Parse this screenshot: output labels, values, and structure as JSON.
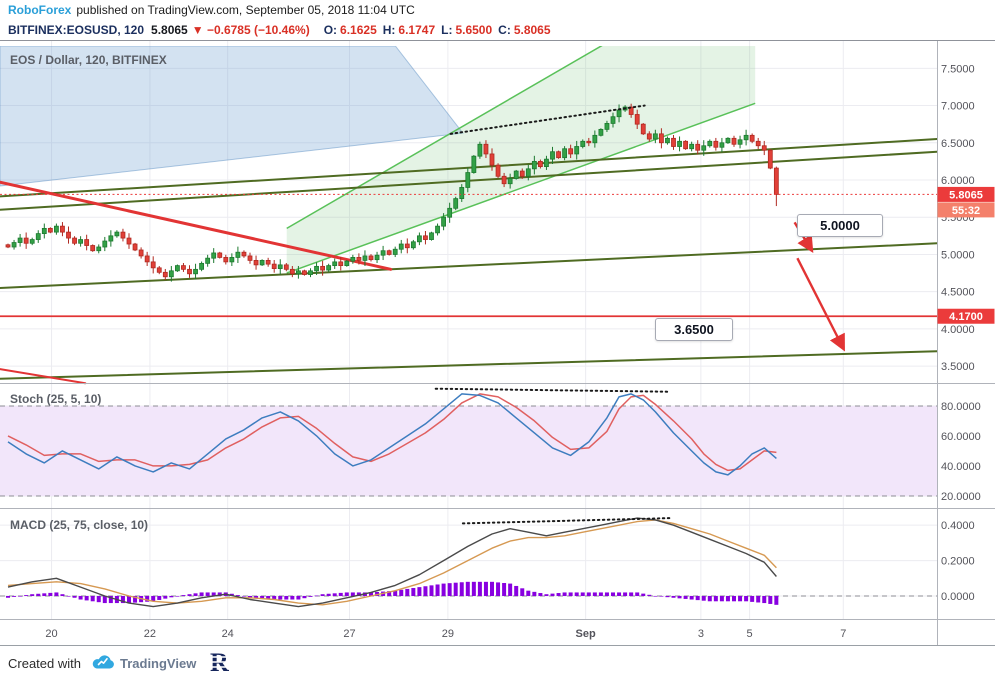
{
  "header": {
    "source": "RoboForex",
    "published": "published on TradingView.com, September 05, 2018 11:04 UTC",
    "symbol": "BITFINEX:EOSUSD, 120",
    "last": "5.8065",
    "change": "▼ −0.6785 (−10.46%)",
    "ohlc": [
      {
        "label": "O:",
        "value": "6.1625"
      },
      {
        "label": "H:",
        "value": "6.1747"
      },
      {
        "label": "L:",
        "value": "5.6500"
      },
      {
        "label": "C:",
        "value": "5.8065"
      }
    ]
  },
  "footer": {
    "created_with": "Created with",
    "tradingview": "TradingView"
  },
  "colors": {
    "up": "#33a046",
    "up_border": "#1d7a30",
    "down": "#e14038",
    "down_border": "#b02a22",
    "channel_fill": "rgba(106,190,112,0.18)",
    "channel_line": "#59c159",
    "trend_green": "#4f6b22",
    "red_line": "#e23434",
    "wedge_fill": "rgba(96,150,205,0.28)",
    "wedge_line": "rgba(80,135,190,0.45)",
    "grid": "#ececf1",
    "separator": "#b0b3ba",
    "axis_text": "#53535a",
    "stoch_k": "#3d7dbf",
    "stoch_d": "#e06060",
    "band_fill": "#f2e6fa",
    "band_border": "#8c8c94",
    "macd_line": "#4a4a4a",
    "macd_signal": "#d69952",
    "hist": "#8800e0",
    "dotted": "#1a1a1a",
    "badge_red": "#eb3b3b",
    "badge_countdown": "#f4806b",
    "link_blue": "#2a9fd8",
    "navy": "#1b2f5e",
    "value_red": "#d93025"
  },
  "chart_data": {
    "type": "candlestick",
    "title": "EOS / Dollar, 120, BITFINEX",
    "ylim": [
      3.3,
      7.8
    ],
    "stoch_ylim": [
      13.3,
      93.3
    ],
    "macd_ylim": [
      -0.13,
      0.48
    ],
    "price_ticks": [
      "7.5000",
      "7.0000",
      "6.5000",
      "6.0000",
      "5.5000",
      "5.0000",
      "4.5000",
      "4.0000",
      "3.5000"
    ],
    "x_ticks": [
      {
        "label": "20",
        "f": 0.055
      },
      {
        "label": "22",
        "f": 0.16
      },
      {
        "label": "24",
        "f": 0.243
      },
      {
        "label": "27",
        "f": 0.373
      },
      {
        "label": "29",
        "f": 0.478
      },
      {
        "label": "Sep",
        "f": 0.625,
        "bold": true
      },
      {
        "label": "3",
        "f": 0.748
      },
      {
        "label": "5",
        "f": 0.8
      },
      {
        "label": "7",
        "f": 0.9
      }
    ],
    "candles_close": [
      5.1,
      5.16,
      5.22,
      5.15,
      5.2,
      5.28,
      5.35,
      5.3,
      5.38,
      5.3,
      5.22,
      5.15,
      5.2,
      5.12,
      5.05,
      5.1,
      5.18,
      5.25,
      5.3,
      5.22,
      5.14,
      5.06,
      4.98,
      4.9,
      4.82,
      4.76,
      4.7,
      4.78,
      4.85,
      4.8,
      4.74,
      4.8,
      4.88,
      4.95,
      5.02,
      4.96,
      4.9,
      4.96,
      5.03,
      4.98,
      4.92,
      4.86,
      4.92,
      4.87,
      4.81,
      4.86,
      4.8,
      4.74,
      4.78,
      4.73,
      4.78,
      4.84,
      4.79,
      4.85,
      4.9,
      4.85,
      4.91,
      4.96,
      4.92,
      4.98,
      4.93,
      4.99,
      5.05,
      5.0,
      5.07,
      5.14,
      5.09,
      5.17,
      5.25,
      5.2,
      5.29,
      5.38,
      5.5,
      5.62,
      5.75,
      5.9,
      6.1,
      6.32,
      6.48,
      6.35,
      6.2,
      6.05,
      5.95,
      6.02,
      6.12,
      6.05,
      6.15,
      6.25,
      6.18,
      6.28,
      6.38,
      6.3,
      6.42,
      6.35,
      6.45,
      6.52,
      6.5,
      6.6,
      6.68,
      6.76,
      6.85,
      6.94,
      6.98,
      6.88,
      6.75,
      6.62,
      6.55,
      6.62,
      6.5,
      6.56,
      6.45,
      6.52,
      6.42,
      6.48,
      6.4,
      6.46,
      6.52,
      6.44,
      6.5,
      6.56,
      6.48,
      6.54,
      6.6,
      6.52,
      6.46,
      6.4,
      6.16,
      5.8065
    ],
    "last_candle_low": 5.65,
    "current_price_value": 5.8065,
    "current_price_label": "5.8065",
    "countdown": "55:32",
    "level_line": {
      "label": "4.1700",
      "price": 4.17
    },
    "targets": [
      {
        "label": "5.0000",
        "price": 5.0
      },
      {
        "label": "3.6500",
        "price": 3.65
      }
    ],
    "trendlines": [
      {
        "x1": 0,
        "p1": 5.78,
        "x2": 1,
        "p2": 6.55,
        "c": "trend_green",
        "w": 2
      },
      {
        "x1": 0,
        "p1": 5.6,
        "x2": 1,
        "p2": 6.38,
        "c": "trend_green",
        "w": 2
      },
      {
        "x1": 0,
        "p1": 4.55,
        "x2": 1,
        "p2": 5.15,
        "c": "trend_green",
        "w": 2
      },
      {
        "x1": 0,
        "p1": 3.33,
        "x2": 1,
        "p2": 3.7,
        "c": "trend_green",
        "w": 2
      },
      {
        "x1": 0,
        "p1": 5.97,
        "x2": 0.417,
        "p2": 4.8,
        "c": "red_line",
        "w": 3
      },
      {
        "x1": 0,
        "p1": 3.46,
        "x2": 0.091,
        "p2": 3.27,
        "c": "red_line",
        "w": 2
      }
    ],
    "channel": {
      "x1": 0.306,
      "x2": 0.806,
      "lower_p1": 4.75,
      "lower_p2": 7.03,
      "upper_p1": 5.35,
      "upper_p2": 9.0
    },
    "wedge": {
      "points": [
        [
          0,
          7.8
        ],
        [
          0.422,
          7.8
        ],
        [
          0.494,
          6.63
        ],
        [
          0,
          5.92
        ]
      ]
    },
    "divergence_lines": [
      {
        "panel": "main",
        "x1": 0.481,
        "v1": 6.62,
        "x2": 0.688,
        "v2": 7.0
      },
      {
        "panel": "stoch",
        "x1": 0.465,
        "v1": 91.5,
        "x2": 0.712,
        "v2": 89.5
      },
      {
        "panel": "macd",
        "x1": 0.494,
        "v1": 0.41,
        "x2": 0.717,
        "v2": 0.44
      }
    ],
    "arrows": [
      {
        "x1": 0.848,
        "p1": 5.43,
        "x2": 0.866,
        "p2": 5.06
      },
      {
        "x1": 0.851,
        "p1": 4.95,
        "x2": 0.9,
        "p2": 3.74
      }
    ],
    "stoch": {
      "label": "Stoch (25, 5, 10)",
      "ticks": [
        "80.0000",
        "60.0000",
        "40.0000",
        "20.0000"
      ],
      "band": [
        20,
        80
      ],
      "k_points": [
        [
          0,
          56
        ],
        [
          3,
          48
        ],
        [
          6,
          42
        ],
        [
          9,
          50
        ],
        [
          12,
          44
        ],
        [
          15,
          38
        ],
        [
          18,
          46
        ],
        [
          21,
          40
        ],
        [
          24,
          36
        ],
        [
          27,
          42
        ],
        [
          30,
          38
        ],
        [
          33,
          48
        ],
        [
          36,
          58
        ],
        [
          39,
          64
        ],
        [
          42,
          72
        ],
        [
          45,
          76
        ],
        [
          48,
          70
        ],
        [
          51,
          60
        ],
        [
          54,
          48
        ],
        [
          57,
          40
        ],
        [
          60,
          44
        ],
        [
          63,
          52
        ],
        [
          66,
          60
        ],
        [
          69,
          68
        ],
        [
          72,
          78
        ],
        [
          75,
          88
        ],
        [
          78,
          87
        ],
        [
          81,
          82
        ],
        [
          84,
          72
        ],
        [
          87,
          62
        ],
        [
          90,
          52
        ],
        [
          93,
          47
        ],
        [
          96,
          56
        ],
        [
          99,
          72
        ],
        [
          101,
          86
        ],
        [
          103,
          88
        ],
        [
          105,
          84
        ],
        [
          107,
          76
        ],
        [
          110,
          62
        ],
        [
          113,
          50
        ],
        [
          115,
          42
        ],
        [
          117,
          36
        ],
        [
          119,
          34
        ],
        [
          121,
          40
        ],
        [
          123,
          48
        ],
        [
          125,
          52
        ],
        [
          127,
          45
        ]
      ],
      "d_points": [
        [
          0,
          60
        ],
        [
          3,
          54
        ],
        [
          6,
          47
        ],
        [
          9,
          48
        ],
        [
          12,
          48
        ],
        [
          15,
          43
        ],
        [
          18,
          44
        ],
        [
          21,
          44
        ],
        [
          24,
          40
        ],
        [
          27,
          40
        ],
        [
          30,
          41
        ],
        [
          33,
          44
        ],
        [
          36,
          52
        ],
        [
          39,
          58
        ],
        [
          42,
          66
        ],
        [
          45,
          72
        ],
        [
          48,
          73
        ],
        [
          51,
          65
        ],
        [
          54,
          55
        ],
        [
          57,
          46
        ],
        [
          60,
          43
        ],
        [
          63,
          48
        ],
        [
          66,
          55
        ],
        [
          69,
          62
        ],
        [
          72,
          71
        ],
        [
          75,
          82
        ],
        [
          78,
          88
        ],
        [
          81,
          86
        ],
        [
          84,
          79
        ],
        [
          87,
          70
        ],
        [
          90,
          59
        ],
        [
          93,
          51
        ],
        [
          96,
          52
        ],
        [
          99,
          63
        ],
        [
          101,
          78
        ],
        [
          103,
          86
        ],
        [
          105,
          87
        ],
        [
          107,
          81
        ],
        [
          110,
          70
        ],
        [
          113,
          58
        ],
        [
          115,
          48
        ],
        [
          117,
          41
        ],
        [
          119,
          37
        ],
        [
          121,
          38
        ],
        [
          123,
          44
        ],
        [
          125,
          50
        ],
        [
          127,
          49
        ]
      ]
    },
    "macd": {
      "label": "MACD (25, 75, close, 10)",
      "ticks": [
        "0.4000",
        "0.2000",
        "0.0000"
      ],
      "macd_points": [
        [
          0,
          0.05
        ],
        [
          4,
          0.08
        ],
        [
          8,
          0.1
        ],
        [
          12,
          0.05
        ],
        [
          16,
          0.0
        ],
        [
          20,
          -0.04
        ],
        [
          24,
          -0.06
        ],
        [
          28,
          -0.04
        ],
        [
          32,
          -0.01
        ],
        [
          36,
          0.01
        ],
        [
          40,
          -0.02
        ],
        [
          44,
          -0.04
        ],
        [
          48,
          -0.06
        ],
        [
          52,
          -0.04
        ],
        [
          56,
          -0.01
        ],
        [
          60,
          0.02
        ],
        [
          64,
          0.06
        ],
        [
          68,
          0.12
        ],
        [
          72,
          0.2
        ],
        [
          76,
          0.28
        ],
        [
          80,
          0.35
        ],
        [
          83,
          0.38
        ],
        [
          86,
          0.36
        ],
        [
          89,
          0.34
        ],
        [
          92,
          0.36
        ],
        [
          95,
          0.38
        ],
        [
          98,
          0.4
        ],
        [
          101,
          0.42
        ],
        [
          104,
          0.44
        ],
        [
          107,
          0.43
        ],
        [
          110,
          0.4
        ],
        [
          113,
          0.36
        ],
        [
          116,
          0.32
        ],
        [
          119,
          0.28
        ],
        [
          122,
          0.24
        ],
        [
          125,
          0.19
        ],
        [
          127,
          0.11
        ]
      ],
      "signal_points": [
        [
          0,
          0.06
        ],
        [
          4,
          0.07
        ],
        [
          8,
          0.08
        ],
        [
          12,
          0.07
        ],
        [
          16,
          0.04
        ],
        [
          20,
          0.0
        ],
        [
          24,
          -0.03
        ],
        [
          28,
          -0.04
        ],
        [
          32,
          -0.03
        ],
        [
          36,
          -0.01
        ],
        [
          40,
          -0.01
        ],
        [
          44,
          -0.02
        ],
        [
          48,
          -0.04
        ],
        [
          52,
          -0.05
        ],
        [
          56,
          -0.03
        ],
        [
          60,
          0.0
        ],
        [
          64,
          0.03
        ],
        [
          68,
          0.07
        ],
        [
          72,
          0.13
        ],
        [
          76,
          0.2
        ],
        [
          80,
          0.27
        ],
        [
          83,
          0.31
        ],
        [
          86,
          0.33
        ],
        [
          89,
          0.33
        ],
        [
          92,
          0.34
        ],
        [
          95,
          0.36
        ],
        [
          98,
          0.38
        ],
        [
          101,
          0.4
        ],
        [
          104,
          0.42
        ],
        [
          107,
          0.43
        ],
        [
          110,
          0.41
        ],
        [
          113,
          0.38
        ],
        [
          116,
          0.35
        ],
        [
          119,
          0.31
        ],
        [
          122,
          0.27
        ],
        [
          125,
          0.23
        ],
        [
          127,
          0.16
        ]
      ]
    }
  }
}
